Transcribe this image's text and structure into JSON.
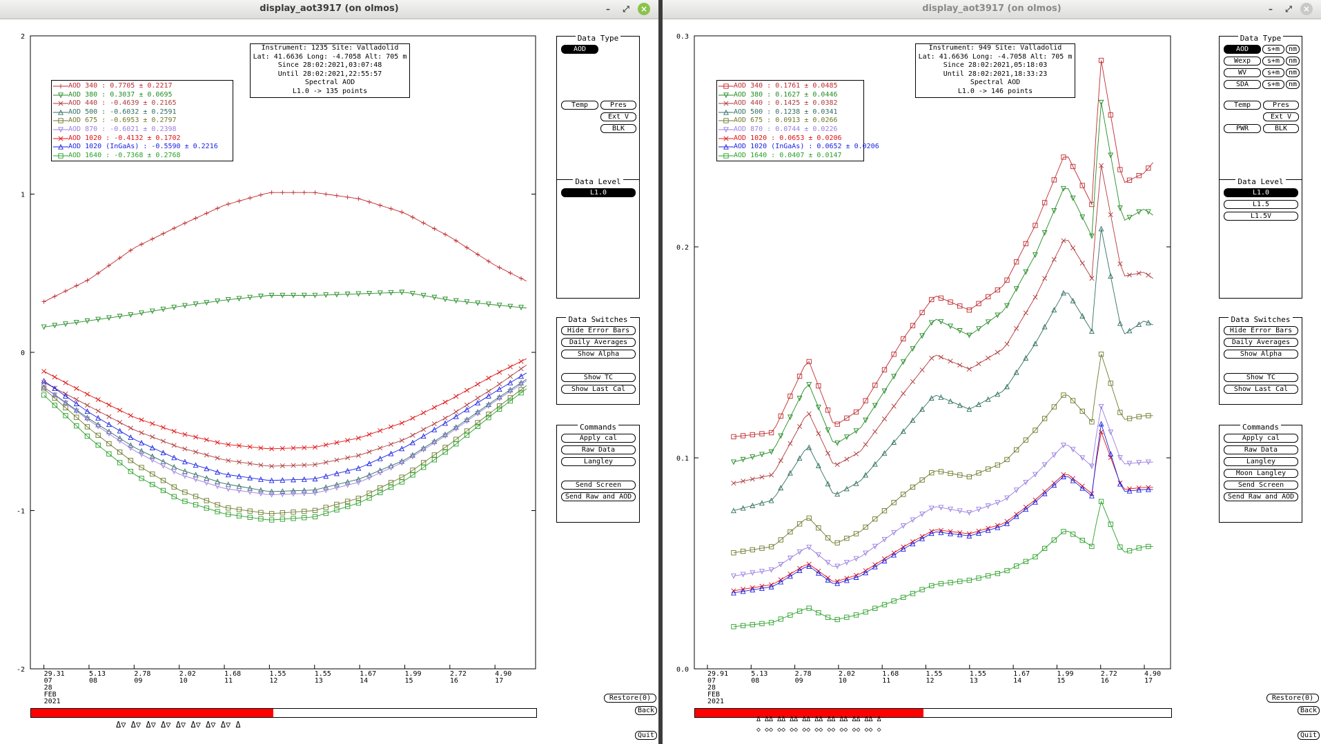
{
  "colors": {
    "c340": "#c0282c",
    "c380": "#228b22",
    "c440": "#b03a3a",
    "c500": "#2f6f5f",
    "c675": "#6b7a2a",
    "c870": "#9a7de0",
    "c1020": "#e01010",
    "c1020i": "#1a22e6",
    "c1640": "#28a028"
  },
  "left": {
    "window_title": "display_aot3917 (on olmos)",
    "info": [
      "Instrument: 1235 Site: Valladolid",
      "Lat: 41.6636 Long: -4.7058 Alt: 705 m",
      "Since 28:02:2021,03:07:48",
      "Until 28:02:2021,22:55:57",
      "Spectral AOD",
      "L1.0 -> 135 points"
    ],
    "legend": [
      {
        "label": "AOD 340  : 0.7705 ± 0.2217",
        "color": "#c0282c",
        "marker": "plus"
      },
      {
        "label": "AOD 380  : 0.3037 ± 0.0695",
        "color": "#228b22",
        "marker": "tdown"
      },
      {
        "label": "AOD 440  : -0.4639 ± 0.2165",
        "color": "#b03a3a",
        "marker": "x"
      },
      {
        "label": "AOD 500  : -0.6032 ± 0.2591",
        "color": "#2f6f5f",
        "marker": "tri"
      },
      {
        "label": "AOD 675  : -0.6953 ± 0.2797",
        "color": "#6b7a2a",
        "marker": "sq"
      },
      {
        "label": "AOD 870  : -0.6021 ± 0.2398",
        "color": "#9a7de0",
        "marker": "tdown"
      },
      {
        "label": "AOD 1020  : -0.4132 ± 0.1702",
        "color": "#e01010",
        "marker": "x"
      },
      {
        "label": "AOD 1020 (InGaAs)  : -0.5590 ± 0.2216",
        "color": "#1a22e6",
        "marker": "tri"
      },
      {
        "label": "AOD 1640  : -0.7368 ± 0.2768",
        "color": "#28a028",
        "marker": "sq"
      }
    ],
    "yticks": [
      "2",
      "1",
      "0",
      "-1",
      "-2"
    ],
    "xticks": [
      {
        "v": "29.31",
        "h": "07"
      },
      {
        "v": "5.13",
        "h": "08"
      },
      {
        "v": "2.78",
        "h": "09"
      },
      {
        "v": "2.02",
        "h": "10"
      },
      {
        "v": "1.68",
        "h": "11"
      },
      {
        "v": "1.55",
        "h": "12"
      },
      {
        "v": "1.55",
        "h": "13"
      },
      {
        "v": "1.67",
        "h": "14"
      },
      {
        "v": "1.99",
        "h": "15"
      },
      {
        "v": "2.72",
        "h": "16"
      },
      {
        "v": "4.90",
        "h": "17"
      }
    ],
    "date_day": "28",
    "date_month": "FEB",
    "date_year": "2021",
    "data_type_title": "Data Type",
    "data_type_buttons": [
      "AOD",
      "Temp",
      "Pres",
      "Ext V",
      "BLK"
    ],
    "data_level_title": "Data Level",
    "data_level_buttons": [
      "L1.0"
    ],
    "switches_title": "Data Switches",
    "switches": [
      "Hide Error Bars",
      "Daily Averages",
      "Show Alpha",
      "Show TC",
      "Show Last Cal"
    ],
    "commands_title": "Commands",
    "commands": [
      "Apply cal",
      "Raw Data",
      "Langley",
      "Send Screen",
      "Send Raw and AOD"
    ],
    "restore": "Restore(0)",
    "back": "Back",
    "quit": "Quit",
    "progress": 0.48,
    "marker_row": "Δ▽  Δ▽  Δ▽  Δ▽  Δ▽  Δ▽  Δ▽  Δ▽  Δ"
  },
  "right": {
    "window_title": "display_aot3917 (on olmos)",
    "info": [
      "Instrument: 949 Site: Valladolid",
      "Lat: 41.6636 Long: -4.7058 Alt: 705 m",
      "Since 28:02:2021,05:18:03",
      "Until 28:02:2021,18:33:23",
      "Spectral AOD",
      "L1.0 -> 146 points"
    ],
    "legend": [
      {
        "label": "AOD 340  : 0.1761 ± 0.0485",
        "color": "#c0282c",
        "marker": "sq"
      },
      {
        "label": "AOD 380  : 0.1627 ± 0.0446",
        "color": "#228b22",
        "marker": "tdown"
      },
      {
        "label": "AOD 440  : 0.1425 ± 0.0382",
        "color": "#b03a3a",
        "marker": "x"
      },
      {
        "label": "AOD 500  : 0.1238 ± 0.0341",
        "color": "#2f6f5f",
        "marker": "tri"
      },
      {
        "label": "AOD 675  : 0.0913 ± 0.0266",
        "color": "#6b7a2a",
        "marker": "sq"
      },
      {
        "label": "AOD 870  : 0.0744 ± 0.0226",
        "color": "#9a7de0",
        "marker": "tdown"
      },
      {
        "label": "AOD 1020  : 0.0653 ± 0.0206",
        "color": "#e01010",
        "marker": "x"
      },
      {
        "label": "AOD 1020 (InGaAs)  : 0.0652 ± 0.0206",
        "color": "#1a22e6",
        "marker": "tri"
      },
      {
        "label": "AOD 1640  : 0.0407 ± 0.0147",
        "color": "#28a028",
        "marker": "sq"
      }
    ],
    "yticks": [
      "0.3",
      "0.2",
      "0.1",
      "0.0"
    ],
    "xticks": [
      {
        "v": "29.91",
        "h": "07"
      },
      {
        "v": "5.13",
        "h": "08"
      },
      {
        "v": "2.78",
        "h": "09"
      },
      {
        "v": "2.02",
        "h": "10"
      },
      {
        "v": "1.68",
        "h": "11"
      },
      {
        "v": "1.55",
        "h": "12"
      },
      {
        "v": "1.55",
        "h": "13"
      },
      {
        "v": "1.67",
        "h": "14"
      },
      {
        "v": "1.99",
        "h": "15"
      },
      {
        "v": "2.72",
        "h": "16"
      },
      {
        "v": "4.90",
        "h": "17"
      }
    ],
    "date_day": "28",
    "date_month": "FEB",
    "date_year": "2021",
    "data_type_title": "Data Type",
    "data_type_rows": [
      [
        "AOD",
        "s+m",
        "nm"
      ],
      [
        "Wexp",
        "s+m",
        "nm"
      ],
      [
        "WV",
        "s+m",
        "nm"
      ],
      [
        "SDA",
        "s+m",
        "nm"
      ]
    ],
    "data_type_buttons": [
      "Temp",
      "Pres",
      "Ext V",
      "PWR",
      "BLK"
    ],
    "data_level_title": "Data Level",
    "data_level_buttons": [
      "L1.0",
      "L1.5",
      "L1.5V"
    ],
    "switches_title": "Data Switches",
    "switches": [
      "Hide Error Bars",
      "Daily Averages",
      "Show Alpha",
      "Show TC",
      "Show Last Cal"
    ],
    "commands_title": "Commands",
    "commands": [
      "Apply cal",
      "Raw Data",
      "Langley",
      "Moon Langley",
      "Send Screen",
      "Send Raw and AOD"
    ],
    "restore": "Restore(0)",
    "back": "Back",
    "quit": "Quit",
    "progress": 0.48,
    "marker_row": "Δ  ΔΔ  ΔΔ  ΔΔ  ΔΔ  ΔΔ  ΔΔ  ΔΔ  ΔΔ  ΔΔ  Δ",
    "marker_row2": "◇  ◇◇  ◇◇  ◇◇  ◇◇  ◇◇  ◇◇  ◇◇  ◇◇  ◇◇  ◇"
  },
  "chart_data": [
    {
      "type": "line",
      "title": "",
      "xlabel": "",
      "ylabel": "",
      "ylim": [
        -2,
        2
      ],
      "x_hours": [
        7,
        8,
        9,
        10,
        11,
        12,
        13,
        14,
        15,
        16,
        17
      ],
      "series": [
        {
          "name": "AOD 340",
          "x": [
            7.0,
            8.0,
            9.0,
            10.0,
            11.0,
            12.0,
            13.0,
            14.0,
            15.0,
            16.0,
            17.0,
            17.7
          ],
          "values": [
            0.32,
            0.46,
            0.66,
            0.8,
            0.93,
            1.01,
            1.01,
            0.97,
            0.88,
            0.73,
            0.55,
            0.45
          ]
        },
        {
          "name": "AOD 380",
          "x": [
            7.0,
            8.0,
            9.0,
            10.0,
            11.0,
            12.0,
            13.0,
            14.0,
            15.0,
            16.0,
            17.0,
            17.7
          ],
          "values": [
            0.16,
            0.2,
            0.24,
            0.29,
            0.33,
            0.36,
            0.36,
            0.37,
            0.38,
            0.33,
            0.3,
            0.28
          ]
        },
        {
          "name": "AOD 440",
          "x": [
            7.0,
            8.0,
            9.0,
            10.0,
            11.0,
            12.0,
            13.0,
            14.0,
            15.0,
            16.0,
            17.0,
            17.7
          ],
          "values": [
            -0.19,
            -0.34,
            -0.49,
            -0.6,
            -0.68,
            -0.72,
            -0.71,
            -0.65,
            -0.55,
            -0.4,
            -0.22,
            -0.08
          ]
        },
        {
          "name": "AOD 500",
          "x": [
            7.0,
            8.0,
            9.0,
            10.0,
            11.0,
            12.0,
            13.0,
            14.0,
            15.0,
            16.0,
            17.0,
            17.7
          ],
          "values": [
            -0.22,
            -0.42,
            -0.6,
            -0.74,
            -0.83,
            -0.88,
            -0.87,
            -0.8,
            -0.68,
            -0.5,
            -0.3,
            -0.17
          ]
        },
        {
          "name": "AOD 675",
          "x": [
            7.0,
            8.0,
            9.0,
            10.0,
            11.0,
            12.0,
            13.0,
            14.0,
            15.0,
            16.0,
            17.0,
            17.7
          ],
          "values": [
            -0.23,
            -0.48,
            -0.7,
            -0.87,
            -0.98,
            -1.02,
            -1.0,
            -0.92,
            -0.78,
            -0.58,
            -0.36,
            -0.21
          ]
        },
        {
          "name": "AOD 870",
          "x": [
            7.0,
            8.0,
            9.0,
            10.0,
            11.0,
            12.0,
            13.0,
            14.0,
            15.0,
            16.0,
            17.0,
            17.7
          ],
          "values": [
            -0.22,
            -0.43,
            -0.62,
            -0.77,
            -0.86,
            -0.9,
            -0.89,
            -0.82,
            -0.69,
            -0.51,
            -0.31,
            -0.18
          ]
        },
        {
          "name": "AOD 1020",
          "x": [
            7.0,
            8.0,
            9.0,
            10.0,
            11.0,
            12.0,
            13.0,
            14.0,
            15.0,
            16.0,
            17.0,
            17.7
          ],
          "values": [
            -0.12,
            -0.27,
            -0.41,
            -0.51,
            -0.58,
            -0.61,
            -0.6,
            -0.54,
            -0.44,
            -0.3,
            -0.14,
            -0.04
          ]
        },
        {
          "name": "AOD 1020 (InGaAs)",
          "x": [
            7.0,
            8.0,
            9.0,
            10.0,
            11.0,
            12.0,
            13.0,
            14.0,
            15.0,
            16.0,
            17.0,
            17.7
          ],
          "values": [
            -0.18,
            -0.38,
            -0.55,
            -0.68,
            -0.77,
            -0.81,
            -0.8,
            -0.73,
            -0.6,
            -0.43,
            -0.25,
            -0.13
          ]
        },
        {
          "name": "AOD 1640",
          "x": [
            7.0,
            8.0,
            9.0,
            10.0,
            11.0,
            12.0,
            13.0,
            14.0,
            15.0,
            16.0,
            17.0,
            17.7
          ],
          "values": [
            -0.27,
            -0.54,
            -0.77,
            -0.93,
            -1.02,
            -1.06,
            -1.04,
            -0.95,
            -0.81,
            -0.61,
            -0.38,
            -0.23
          ]
        }
      ]
    },
    {
      "type": "line",
      "title": "",
      "xlabel": "",
      "ylabel": "",
      "ylim": [
        0,
        0.3
      ],
      "x_hours": [
        7,
        8,
        9,
        10,
        11,
        12,
        13,
        14,
        15,
        16,
        17
      ],
      "series": [
        {
          "name": "AOD 340",
          "x": [
            7.6,
            8.5,
            9.3,
            9.9,
            10.5,
            11.5,
            12.2,
            13.0,
            13.8,
            14.5,
            15.2,
            15.8,
            16.0,
            16.5,
            17.0,
            17.2
          ],
          "values": [
            0.11,
            0.112,
            0.147,
            0.115,
            0.123,
            0.157,
            0.177,
            0.17,
            0.182,
            0.21,
            0.245,
            0.22,
            0.29,
            0.23,
            0.235,
            0.24
          ]
        },
        {
          "name": "AOD 380",
          "x": [
            7.6,
            8.5,
            9.3,
            9.9,
            10.5,
            11.5,
            12.2,
            13.0,
            13.8,
            14.5,
            15.2,
            15.8,
            16.0,
            16.5,
            17.0,
            17.2
          ],
          "values": [
            0.098,
            0.103,
            0.136,
            0.106,
            0.114,
            0.146,
            0.166,
            0.158,
            0.17,
            0.196,
            0.23,
            0.205,
            0.27,
            0.212,
            0.218,
            0.215
          ]
        },
        {
          "name": "AOD 440",
          "x": [
            7.6,
            8.5,
            9.3,
            9.9,
            10.5,
            11.5,
            12.2,
            13.0,
            13.8,
            14.5,
            15.2,
            15.8,
            16.0,
            16.5,
            17.0,
            17.2
          ],
          "values": [
            0.088,
            0.092,
            0.122,
            0.096,
            0.103,
            0.131,
            0.149,
            0.142,
            0.152,
            0.176,
            0.205,
            0.185,
            0.24,
            0.186,
            0.188,
            0.185
          ]
        },
        {
          "name": "AOD 500",
          "x": [
            7.6,
            8.5,
            9.3,
            9.9,
            10.5,
            11.5,
            12.2,
            13.0,
            13.8,
            14.5,
            15.2,
            15.8,
            16.0,
            16.5,
            17.0,
            17.2
          ],
          "values": [
            0.075,
            0.08,
            0.106,
            0.082,
            0.089,
            0.113,
            0.13,
            0.123,
            0.132,
            0.154,
            0.18,
            0.16,
            0.21,
            0.158,
            0.165,
            0.163
          ]
        },
        {
          "name": "AOD 675",
          "x": [
            7.6,
            8.5,
            9.3,
            9.9,
            10.5,
            11.5,
            12.2,
            13.0,
            13.8,
            14.5,
            15.2,
            15.8,
            16.0,
            16.5,
            17.0,
            17.2
          ],
          "values": [
            0.055,
            0.058,
            0.072,
            0.059,
            0.065,
            0.083,
            0.094,
            0.091,
            0.098,
            0.113,
            0.131,
            0.117,
            0.15,
            0.118,
            0.12,
            0.12
          ]
        },
        {
          "name": "AOD 870",
          "x": [
            7.6,
            8.5,
            9.3,
            9.9,
            10.5,
            11.5,
            12.2,
            13.0,
            13.8,
            14.5,
            15.2,
            15.8,
            16.0,
            16.5,
            17.0,
            17.2
          ],
          "values": [
            0.044,
            0.047,
            0.058,
            0.048,
            0.053,
            0.068,
            0.077,
            0.074,
            0.08,
            0.092,
            0.107,
            0.096,
            0.125,
            0.097,
            0.098,
            0.098
          ]
        },
        {
          "name": "AOD 1020",
          "x": [
            7.6,
            8.5,
            9.3,
            9.9,
            10.5,
            11.5,
            12.2,
            13.0,
            13.8,
            14.5,
            15.2,
            15.8,
            16.0,
            16.5,
            17.0,
            17.2
          ],
          "values": [
            0.037,
            0.04,
            0.05,
            0.041,
            0.045,
            0.058,
            0.066,
            0.064,
            0.069,
            0.08,
            0.093,
            0.083,
            0.113,
            0.085,
            0.086,
            0.086
          ]
        },
        {
          "name": "AOD 1020 (InGaAs)",
          "x": [
            7.6,
            8.5,
            9.3,
            9.9,
            10.5,
            11.5,
            12.2,
            13.0,
            13.8,
            14.5,
            15.2,
            15.8,
            16.0,
            16.5,
            17.0,
            17.2
          ],
          "values": [
            0.036,
            0.039,
            0.049,
            0.04,
            0.044,
            0.057,
            0.065,
            0.063,
            0.068,
            0.079,
            0.092,
            0.082,
            0.117,
            0.084,
            0.085,
            0.085
          ]
        },
        {
          "name": "AOD 1640",
          "x": [
            7.6,
            8.5,
            9.3,
            9.9,
            10.5,
            11.5,
            12.2,
            13.0,
            13.8,
            14.5,
            15.2,
            15.8,
            16.0,
            16.5,
            17.0,
            17.2
          ],
          "values": [
            0.02,
            0.022,
            0.029,
            0.023,
            0.026,
            0.034,
            0.04,
            0.042,
            0.046,
            0.053,
            0.066,
            0.058,
            0.08,
            0.055,
            0.058,
            0.058
          ]
        }
      ]
    }
  ]
}
